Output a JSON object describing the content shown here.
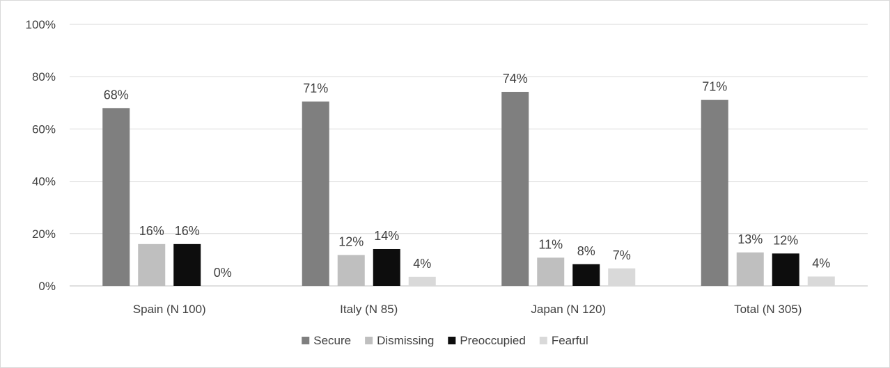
{
  "chart_data": {
    "type": "bar",
    "title": "",
    "xlabel": "",
    "ylabel": "",
    "ylim": [
      0,
      100
    ],
    "y_ticks": [
      "0%",
      "20%",
      "40%",
      "60%",
      "80%",
      "100%"
    ],
    "y_tick_values": [
      0,
      20,
      40,
      60,
      80,
      100
    ],
    "categories": [
      "Spain (N 100)",
      "Italy (N 85)",
      "Japan (N 120)",
      "Total (N 305)"
    ],
    "series": [
      {
        "name": "Secure",
        "color": "#7f7f7f",
        "values": [
          68,
          70.5,
          74.2,
          71.1
        ],
        "labels": [
          "68%",
          "71%",
          "74%",
          "71%"
        ]
      },
      {
        "name": "Dismissing",
        "color": "#bfbfbf",
        "values": [
          16,
          11.8,
          10.8,
          12.8
        ],
        "labels": [
          "16%",
          "12%",
          "11%",
          "13%"
        ]
      },
      {
        "name": "Preoccupied",
        "color": "#0d0d0d",
        "values": [
          16,
          14.1,
          8.3,
          12.4
        ],
        "labels": [
          "16%",
          "14%",
          "8%",
          "12%"
        ]
      },
      {
        "name": "Fearful",
        "color": "#d9d9d9",
        "values": [
          0,
          3.5,
          6.7,
          3.6
        ],
        "labels": [
          "0%",
          "4%",
          "7%",
          "4%"
        ]
      }
    ],
    "grid": true,
    "legend_position": "bottom"
  }
}
